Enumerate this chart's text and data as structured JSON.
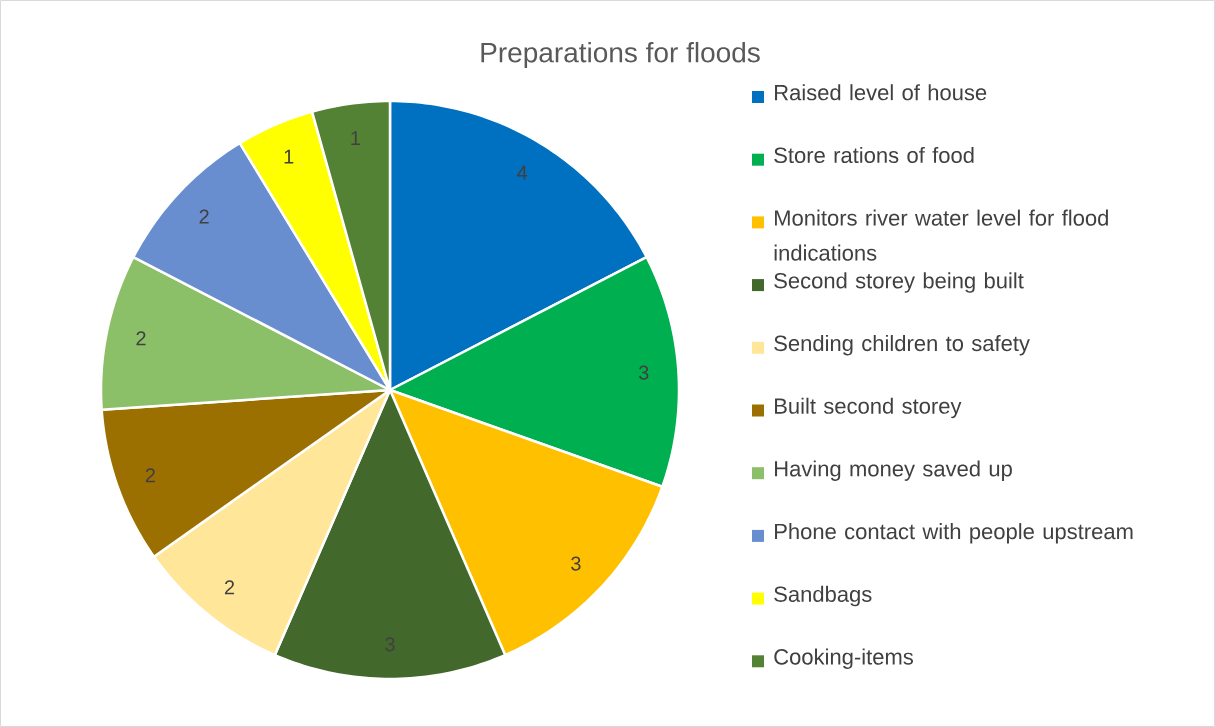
{
  "chart_data": {
    "type": "pie",
    "title": "Preparations for floods",
    "categories": [
      "Raised level of house",
      "Store rations of food",
      "Monitors river water level for flood indications",
      "Second storey being built",
      "Sending children to safety",
      "Built second storey",
      "Having money saved up",
      "Phone contact with people upstream",
      "Sandbags",
      "Cooking-items"
    ],
    "values": [
      4,
      3,
      3,
      3,
      2,
      2,
      2,
      2,
      1,
      1
    ],
    "colors": [
      "#0070c0",
      "#00b050",
      "#ffc000",
      "#43682b",
      "#ffe699",
      "#9c7000",
      "#8cc068",
      "#698ed0",
      "#ffff00",
      "#548235"
    ],
    "data_labels": true,
    "legend": "right"
  }
}
